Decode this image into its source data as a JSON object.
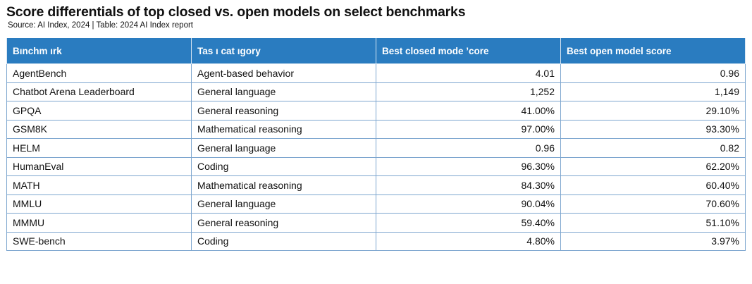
{
  "title": "Score differentials of top closed vs. open models on select benchmarks",
  "subtitle": "Source: AI Index, 2024 | Table: 2024 AI Index report",
  "chart_data": {
    "type": "table",
    "title": "Score differentials of top closed vs. open models on select benchmarks",
    "columns": [
      "Bınchm ırk",
      "Tas ı cat ıgory",
      "Best closed mode  ’core",
      "Best open model score"
    ],
    "rows": [
      [
        "AgentBench",
        "Agent-based behavior",
        "4.01",
        "0.96"
      ],
      [
        "Chatbot Arena Leaderboard",
        "General language",
        "1,252",
        "1,149"
      ],
      [
        "GPQA",
        "General reasoning",
        "41.00%",
        "29.10%"
      ],
      [
        "GSM8K",
        "Mathematical reasoning",
        "97.00%",
        "93.30%"
      ],
      [
        "HELM",
        "General language",
        "0.96",
        "0.82"
      ],
      [
        "HumanEval",
        "Coding",
        "96.30%",
        "62.20%"
      ],
      [
        "MATH",
        "Mathematical reasoning",
        "84.30%",
        "60.40%"
      ],
      [
        "MMLU",
        "General language",
        "90.04%",
        "70.60%"
      ],
      [
        "MMMU",
        "General reasoning",
        "59.40%",
        "51.10%"
      ],
      [
        "SWE-bench",
        "Coding",
        "4.80%",
        "3.97%"
      ]
    ]
  },
  "colors": {
    "header_background": "#2a7cc0",
    "header_text": "#ffffff",
    "grid_line": "#7da6cf"
  }
}
